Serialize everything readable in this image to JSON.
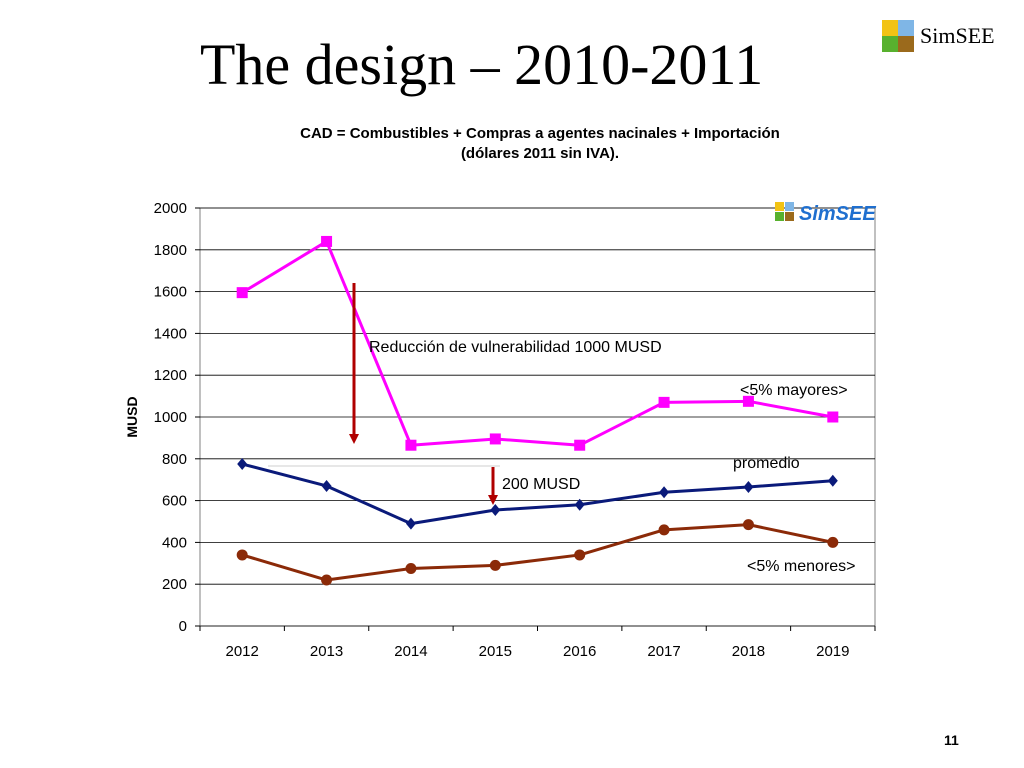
{
  "slide": {
    "title": "The design – 2010-2011",
    "page_number": "11"
  },
  "logo": {
    "text": "SimSEE",
    "colors": [
      "#f2c314",
      "#7fb6e6",
      "#58b12e",
      "#9b6a1c"
    ],
    "icon": "simsee-logo-icon"
  },
  "chart_data": {
    "type": "line",
    "title_lines": [
      "CAD = Combustibles + Compras a agentes nacinales + Importación",
      "(dólares 2011 sin IVA)."
    ],
    "xlabel": "",
    "ylabel": "MUSD",
    "ylim": [
      0,
      2000
    ],
    "yticks": [
      0,
      200,
      400,
      600,
      800,
      1000,
      1200,
      1400,
      1600,
      1800,
      2000
    ],
    "grid": true,
    "categories": [
      "2012",
      "2013",
      "2014",
      "2015",
      "2016",
      "2017",
      "2018",
      "2019"
    ],
    "series": [
      {
        "name": "<5% mayores>",
        "color": "#ff00ff",
        "marker": "square",
        "values": [
          1595,
          1840,
          865,
          895,
          865,
          1070,
          1075,
          1000
        ]
      },
      {
        "name": "promedio",
        "color": "#0a1a7a",
        "marker": "diamond",
        "values": [
          775,
          670,
          490,
          555,
          580,
          640,
          665,
          695
        ]
      },
      {
        "name": "<5% menores>",
        "color": "#8b2a08",
        "marker": "circle",
        "values": [
          340,
          220,
          275,
          290,
          340,
          460,
          485,
          400
        ]
      }
    ],
    "annotations": [
      {
        "text": "Reducción de vulnerabilidad 1000 MUSD",
        "arrow_color": "#b00000"
      },
      {
        "text": "200 MUSD",
        "arrow_color": "#b00000"
      }
    ],
    "watermark_text": "SimSEE"
  }
}
